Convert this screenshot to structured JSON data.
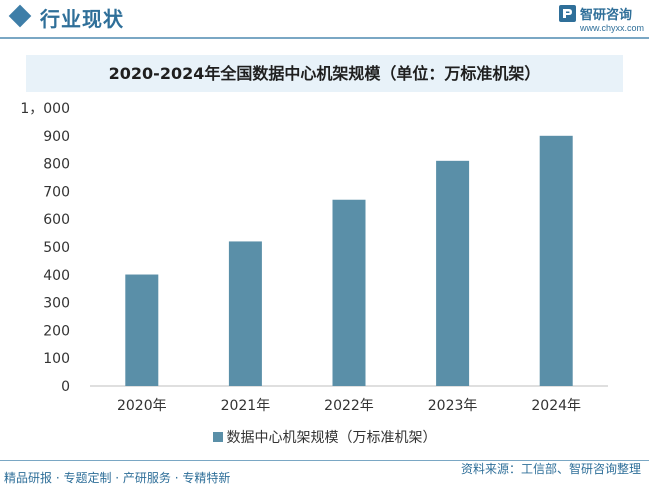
{
  "header": {
    "title": "行业现状",
    "logo_name": "智研咨询",
    "logo_url": "www.chyxx.com"
  },
  "chart_data": {
    "type": "bar",
    "title": "2020-2024年全国数据中心机架规模（单位：万标准机架）",
    "categories": [
      "2020年",
      "2021年",
      "2022年",
      "2023年",
      "2024年"
    ],
    "series": [
      {
        "name": "数据中心机架规模（万标准机架）",
        "values": [
          401,
          520,
          670,
          810,
          900
        ],
        "color": "#5a8fa8"
      }
    ],
    "ylim": [
      0,
      1000
    ],
    "yticks": [
      0,
      100,
      200,
      300,
      400,
      500,
      600,
      700,
      800,
      900,
      1000
    ],
    "ytick_labels": [
      "0",
      "100",
      "200",
      "300",
      "400",
      "500",
      "600",
      "700",
      "800",
      "900",
      "1，000"
    ],
    "grid": false,
    "legend_position": "bottom"
  },
  "footer": {
    "left": "精品研报 · 专题定制 · 产研服务 · 专精特新",
    "right": "资料来源：工信部、智研咨询整理"
  },
  "colors": {
    "accent": "#2f6f99",
    "bar": "#5a8fa8"
  }
}
